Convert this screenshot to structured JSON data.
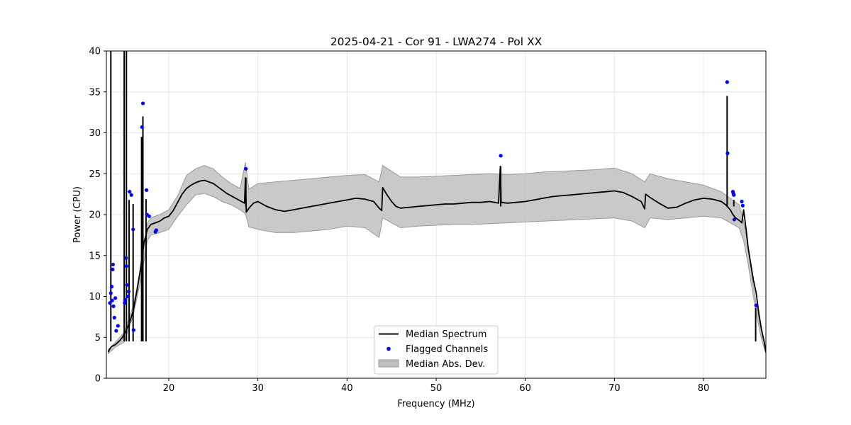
{
  "chart_data": {
    "type": "line",
    "title": "2025-04-21 - Cor 91 - LWA274 - Pol XX",
    "xlabel": "Frequency (MHz)",
    "ylabel": "Power (CPU)",
    "xlim": [
      13,
      87
    ],
    "ylim": [
      0,
      40
    ],
    "x_ticks": [
      20,
      30,
      40,
      50,
      60,
      70,
      80
    ],
    "y_ticks": [
      0,
      5,
      10,
      15,
      20,
      25,
      30,
      35,
      40
    ],
    "grid": true,
    "legend": {
      "location": "bottom-center",
      "entries": [
        "Median Spectrum",
        "Flagged Channels",
        "Median Abs. Dev."
      ]
    },
    "colors": {
      "median": "#000000",
      "flagged": "#0000ff",
      "mad_fill": "#bfbfbf",
      "mad_edge": "#9a9a9a",
      "grid": "#e6e6e6"
    },
    "median_spectrum": {
      "x": [
        13.2,
        13.4,
        13.6,
        13.8,
        14.0,
        14.2,
        14.5,
        14.8,
        15.2,
        15.6,
        16.0,
        16.4,
        16.8,
        17.2,
        17.6,
        18.0,
        18.5,
        19.0,
        19.5,
        20.0,
        20.5,
        21.0,
        21.5,
        22.0,
        22.5,
        23.0,
        23.5,
        24.0,
        24.5,
        25.0,
        25.5,
        26.0,
        26.5,
        27.0,
        27.5,
        28.0,
        28.5,
        28.6,
        28.7,
        29.0,
        29.5,
        30.0,
        30.5,
        31.0,
        31.5,
        32.0,
        32.5,
        33.0,
        34.0,
        35.0,
        36.0,
        37.0,
        38.0,
        39.0,
        40.0,
        41.0,
        42.0,
        43.0,
        43.6,
        43.9,
        44.0,
        44.5,
        45.0,
        45.5,
        46.0,
        47.0,
        48.0,
        49.0,
        50.0,
        51.0,
        52.0,
        53.0,
        54.0,
        55.0,
        56.0,
        57.0,
        57.2,
        57.3,
        58.0,
        59.0,
        60.0,
        61.0,
        62.0,
        63.0,
        64.0,
        65.0,
        66.0,
        67.0,
        68.0,
        69.0,
        70.0,
        71.0,
        72.0,
        73.0,
        73.4,
        73.5,
        74.0,
        75.0,
        76.0,
        77.0,
        78.0,
        79.0,
        80.0,
        81.0,
        82.0,
        82.5,
        83.0,
        83.3,
        83.6,
        84.0,
        84.3,
        84.5,
        84.8,
        85.0,
        85.3,
        85.6,
        85.9,
        86.2,
        86.5,
        86.8,
        87.0
      ],
      "y": [
        3.2,
        3.6,
        3.9,
        4.0,
        4.1,
        4.3,
        4.6,
        5.0,
        5.8,
        6.8,
        8.2,
        10.5,
        13.2,
        16.5,
        18.2,
        18.8,
        19.0,
        19.2,
        19.6,
        19.8,
        20.5,
        21.5,
        22.5,
        23.2,
        23.6,
        23.9,
        24.1,
        24.2,
        24.0,
        23.8,
        23.4,
        23.0,
        22.6,
        22.3,
        22.0,
        21.7,
        21.4,
        24.5,
        20.3,
        20.8,
        21.4,
        21.6,
        21.3,
        21.0,
        20.8,
        20.6,
        20.5,
        20.4,
        20.6,
        20.8,
        21.0,
        21.2,
        21.4,
        21.6,
        21.8,
        22.0,
        21.9,
        21.6,
        20.8,
        20.5,
        23.3,
        22.4,
        21.6,
        21.0,
        20.8,
        20.9,
        21.0,
        21.1,
        21.2,
        21.3,
        21.3,
        21.4,
        21.5,
        21.5,
        21.6,
        21.4,
        25.9,
        21.5,
        21.4,
        21.5,
        21.6,
        21.8,
        22.0,
        22.2,
        22.3,
        22.4,
        22.5,
        22.6,
        22.7,
        22.8,
        22.9,
        22.7,
        22.2,
        21.6,
        20.7,
        22.5,
        22.1,
        21.4,
        20.8,
        20.9,
        21.4,
        21.8,
        22.0,
        21.9,
        21.6,
        21.2,
        20.6,
        20.0,
        19.6,
        19.3,
        19.0,
        20.6,
        18.0,
        16.0,
        14.0,
        12.0,
        10.5,
        8.0,
        6.0,
        4.5,
        3.2
      ]
    },
    "mad_band": {
      "x": [
        13.2,
        14.0,
        15.0,
        16.0,
        17.0,
        17.6,
        18.0,
        19.0,
        20.0,
        21.0,
        22.0,
        23.0,
        24.0,
        25.0,
        26.0,
        27.0,
        28.0,
        28.6,
        29.0,
        30.0,
        32.0,
        34.0,
        36.0,
        38.0,
        40.0,
        42.0,
        43.6,
        44.0,
        46.0,
        48.0,
        50.0,
        52.0,
        54.0,
        56.0,
        58.0,
        60.0,
        62.0,
        64.0,
        66.0,
        68.0,
        70.0,
        72.0,
        73.4,
        74.0,
        76.0,
        78.0,
        80.0,
        82.0,
        83.0,
        84.0,
        84.5,
        85.0,
        85.5,
        86.0,
        86.5,
        87.0
      ],
      "upper": [
        3.5,
        4.4,
        5.6,
        8.8,
        14.2,
        19.0,
        19.6,
        20.0,
        20.6,
        22.3,
        24.8,
        25.6,
        26.0,
        25.6,
        24.6,
        23.8,
        23.2,
        26.4,
        23.1,
        23.8,
        24.0,
        24.2,
        24.4,
        24.6,
        24.8,
        24.9,
        24.0,
        26.0,
        24.6,
        24.6,
        24.7,
        24.8,
        24.9,
        25.0,
        24.9,
        25.0,
        25.2,
        25.3,
        25.4,
        25.5,
        25.7,
        25.0,
        24.0,
        25.0,
        24.4,
        24.0,
        23.6,
        22.8,
        22.0,
        21.2,
        19.2,
        16.0,
        12.0,
        8.5,
        5.8,
        3.2
      ],
      "lower": [
        3.0,
        3.8,
        4.4,
        7.6,
        12.8,
        16.8,
        17.5,
        17.8,
        18.2,
        19.8,
        21.2,
        22.4,
        22.6,
        22.2,
        21.6,
        21.2,
        20.6,
        20.1,
        18.5,
        18.2,
        17.8,
        17.8,
        18.0,
        18.2,
        18.6,
        18.4,
        17.2,
        19.6,
        18.4,
        18.6,
        18.7,
        18.8,
        18.8,
        18.9,
        19.0,
        19.1,
        19.2,
        19.3,
        19.4,
        19.5,
        19.6,
        19.2,
        18.4,
        19.6,
        19.4,
        19.6,
        19.8,
        19.6,
        19.0,
        18.4,
        16.8,
        14.0,
        10.6,
        7.4,
        4.8,
        3.0
      ]
    },
    "spikes": [
      {
        "x": 13.5,
        "y": 40
      },
      {
        "x": 15.0,
        "y": 40
      },
      {
        "x": 15.25,
        "y": 40
      },
      {
        "x": 15.55,
        "y": 21.8
      },
      {
        "x": 16.0,
        "y": 21.3
      },
      {
        "x": 16.95,
        "y": 29.5
      },
      {
        "x": 17.1,
        "y": 32.0
      },
      {
        "x": 17.45,
        "y": 21.9
      },
      {
        "x": 28.65,
        "y": 24.5
      },
      {
        "x": 57.25,
        "y": 25.9
      },
      {
        "x": 82.65,
        "y": 34.5
      },
      {
        "x": 83.4,
        "y": 21.8
      },
      {
        "x": 85.85,
        "y": 8.6
      }
    ],
    "flagged_channels": {
      "x": [
        13.4,
        13.5,
        13.6,
        13.65,
        13.7,
        13.75,
        13.8,
        13.9,
        14.0,
        14.1,
        14.3,
        15.05,
        15.1,
        15.2,
        15.25,
        15.3,
        15.4,
        15.5,
        15.6,
        15.8,
        16.0,
        16.05,
        17.0,
        17.1,
        17.5,
        17.55,
        17.8,
        18.5,
        18.6,
        28.65,
        57.25,
        82.65,
        82.7,
        83.3,
        83.35,
        83.4,
        83.45,
        84.3,
        84.4,
        85.9
      ],
      "y": [
        9.2,
        10.4,
        11.2,
        9.5,
        13.3,
        13.9,
        8.8,
        7.4,
        9.8,
        5.8,
        6.4,
        9.2,
        9.6,
        14.7,
        13.7,
        11.4,
        10.0,
        10.6,
        22.8,
        22.4,
        18.2,
        5.9,
        30.7,
        33.6,
        23.0,
        20.0,
        19.8,
        17.9,
        18.1,
        25.6,
        27.2,
        36.2,
        27.5,
        22.8,
        22.6,
        22.4,
        19.4,
        21.6,
        21.1,
        8.9
      ]
    }
  }
}
